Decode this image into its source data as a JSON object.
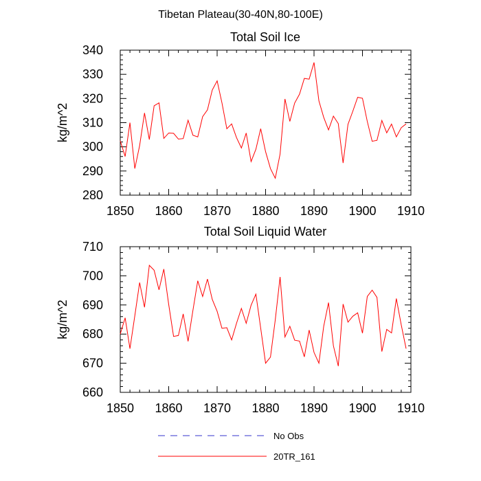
{
  "figure_title": "Tibetan Plateau(30-40N,80-100E)",
  "legend": [
    {
      "label": "No Obs",
      "color": "#3333cc",
      "dash": "dashed"
    },
    {
      "label": "20TR_161",
      "color": "#ff0000",
      "dash": "solid"
    }
  ],
  "chart_data": [
    {
      "type": "line",
      "title": "Total Soil Ice",
      "xlabel": "",
      "ylabel": "kg/m^2",
      "xlim": [
        1850,
        1910
      ],
      "ylim": [
        280,
        340
      ],
      "xticks": [
        1850,
        1860,
        1870,
        1880,
        1890,
        1900,
        1910
      ],
      "yticks": [
        280,
        290,
        300,
        310,
        320,
        330,
        340
      ],
      "grid": false,
      "series": [
        {
          "name": "20TR_161",
          "color": "#ff0000",
          "x": [
            1850,
            1851,
            1852,
            1853,
            1854,
            1855,
            1856,
            1857,
            1858,
            1859,
            1860,
            1861,
            1862,
            1863,
            1864,
            1865,
            1866,
            1867,
            1868,
            1869,
            1870,
            1871,
            1872,
            1873,
            1874,
            1875,
            1876,
            1877,
            1878,
            1879,
            1880,
            1881,
            1882,
            1883,
            1884,
            1885,
            1886,
            1887,
            1888,
            1889,
            1890,
            1891,
            1892,
            1893,
            1894,
            1895,
            1896,
            1897,
            1898,
            1899,
            1900,
            1901,
            1902,
            1903,
            1904,
            1905,
            1906,
            1907,
            1908,
            1909
          ],
          "y": [
            302.5,
            296,
            310,
            291,
            300.5,
            314,
            303,
            317,
            318.2,
            303.5,
            305.7,
            305.6,
            303.2,
            303.4,
            311,
            304.8,
            304.1,
            312.5,
            315.3,
            323.5,
            327.3,
            318.2,
            307.5,
            309.5,
            303.8,
            299.5,
            305.7,
            293.9,
            299,
            307.5,
            298,
            291,
            287,
            297,
            319.8,
            310.5,
            318.1,
            321.8,
            328.3,
            328,
            334.9,
            319,
            312.2,
            307,
            312.7,
            309.6,
            293.3,
            309.3,
            314.7,
            320.5,
            320.1,
            310.5,
            302.3,
            302.7,
            310.9,
            305.8,
            309.4,
            304.1,
            307.9,
            309.5
          ]
        }
      ]
    },
    {
      "type": "line",
      "title": "Total Soil Liquid Water",
      "xlabel": "",
      "ylabel": "kg/m^2",
      "xlim": [
        1850,
        1910
      ],
      "ylim": [
        660,
        710
      ],
      "xticks": [
        1850,
        1860,
        1870,
        1880,
        1890,
        1900,
        1910
      ],
      "yticks": [
        660,
        670,
        680,
        690,
        700,
        710
      ],
      "grid": false,
      "series": [
        {
          "name": "20TR_161",
          "color": "#ff0000",
          "x": [
            1850,
            1851,
            1852,
            1853,
            1854,
            1855,
            1856,
            1857,
            1858,
            1859,
            1860,
            1861,
            1862,
            1863,
            1864,
            1865,
            1866,
            1867,
            1868,
            1869,
            1870,
            1871,
            1872,
            1873,
            1874,
            1875,
            1876,
            1877,
            1878,
            1879,
            1880,
            1881,
            1882,
            1883,
            1884,
            1885,
            1886,
            1887,
            1888,
            1889,
            1890,
            1891,
            1892,
            1893,
            1894,
            1895,
            1896,
            1897,
            1898,
            1899,
            1900,
            1901,
            1902,
            1903,
            1904,
            1905,
            1906,
            1907,
            1908,
            1909
          ],
          "y": [
            680,
            685.6,
            675,
            686.3,
            697.7,
            689.2,
            703.6,
            701.9,
            695.2,
            702.3,
            690.2,
            679.2,
            679.5,
            686.9,
            677.5,
            688.2,
            698.3,
            692.9,
            698.9,
            691.9,
            687.8,
            682,
            682.2,
            678,
            683.7,
            688.8,
            683.7,
            689.9,
            693.7,
            682,
            670,
            672.1,
            684.9,
            699.6,
            679,
            682.7,
            677.9,
            677.6,
            672.2,
            681.4,
            673.7,
            670,
            682.7,
            690.8,
            676,
            669,
            690.3,
            684.1,
            686.1,
            687.3,
            680.3,
            692.9,
            695.1,
            692.6,
            674,
            681.6,
            680.4,
            692.2,
            683.2,
            675
          ]
        }
      ]
    }
  ]
}
